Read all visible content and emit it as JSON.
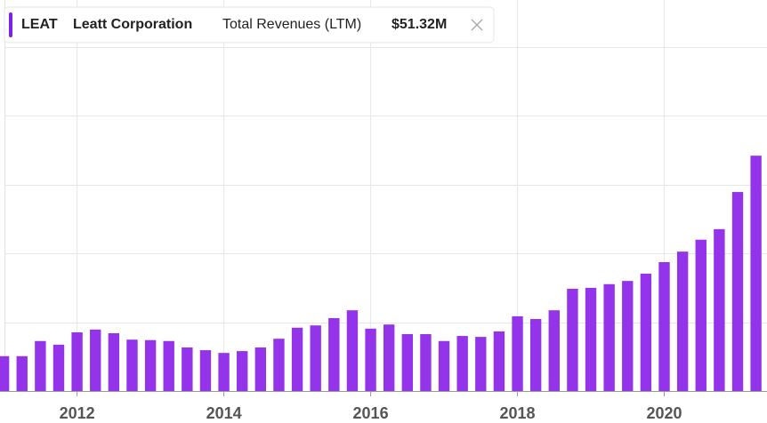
{
  "chart_data": {
    "type": "bar",
    "series": [
      {
        "ticker": "LEAT",
        "name": "Leatt Corporation",
        "metric": "Total Revenues (LTM)",
        "value_label": "$51.32M",
        "color": "#9333ea",
        "values": [
          7.6,
          7.6,
          10.9,
          10.1,
          12.8,
          13.4,
          12.6,
          11.2,
          11.1,
          10.9,
          9.5,
          8.9,
          8.3,
          8.7,
          9.5,
          11.4,
          13.8,
          14.3,
          15.9,
          17.6,
          13.6,
          14.5,
          12.4,
          12.4,
          10.9,
          12.0,
          11.8,
          13.0,
          16.3,
          15.7,
          17.6,
          22.3,
          22.5,
          23.3,
          24.0,
          25.6,
          28.1,
          30.4,
          33.0,
          35.3,
          43.4,
          51.32
        ]
      }
    ],
    "x": [
      2011,
      2011.25,
      2011.5,
      2011.75,
      2012,
      2012.25,
      2012.5,
      2012.75,
      2013,
      2013.25,
      2013.5,
      2013.75,
      2014,
      2014.25,
      2014.5,
      2014.75,
      2015,
      2015.25,
      2015.5,
      2015.75,
      2016,
      2016.25,
      2016.5,
      2016.75,
      2017,
      2017.25,
      2017.5,
      2017.75,
      2018,
      2018.25,
      2018.5,
      2018.75,
      2019,
      2019.25,
      2019.5,
      2019.75,
      2020,
      2020.25,
      2020.5,
      2020.75,
      2021,
      2021.25
    ],
    "xlim": [
      2010.95,
      2021.4
    ],
    "xticks": [
      2012,
      2014,
      2016,
      2018,
      2020
    ],
    "ylim": [
      0,
      85
    ],
    "yticks": [
      0,
      15,
      30,
      45,
      60,
      75
    ],
    "grid": true
  }
}
